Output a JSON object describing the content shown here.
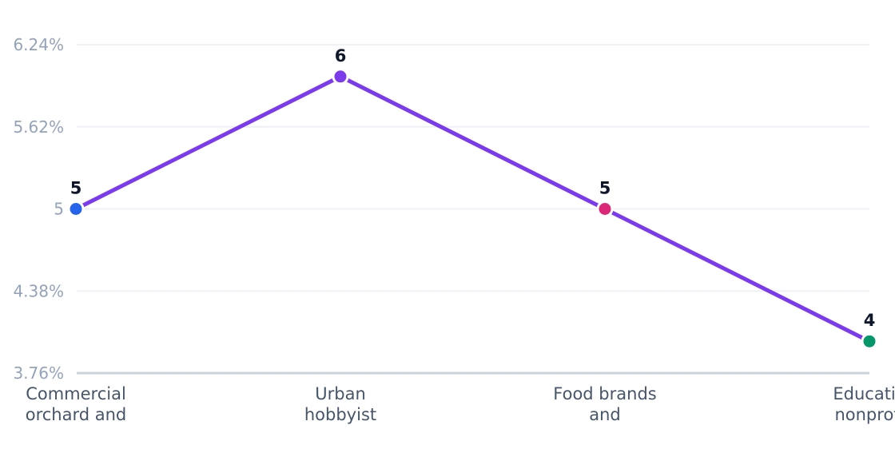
{
  "chart_data": {
    "type": "line",
    "title": "",
    "xlabel": "",
    "ylabel": "",
    "categories": [
      [
        "Commercial",
        "orchard and"
      ],
      [
        "Urban",
        "hobbyist"
      ],
      [
        "Food brands",
        "and"
      ],
      [
        "Educatio",
        "nonprofi"
      ]
    ],
    "y_ticks": [
      "6.24%",
      "5.62%",
      "5",
      "4.38%",
      "3.76%"
    ],
    "ylim": [
      3.76,
      6.24
    ],
    "series": [
      {
        "values": [
          5,
          6,
          5,
          4
        ],
        "data_labels": [
          "5",
          "6",
          "5",
          "4"
        ],
        "line_color": "#7c3aed",
        "point_colors": [
          "#2563eb",
          "#7c3aed",
          "#db2777",
          "#059669"
        ]
      }
    ],
    "grid": true,
    "legend": "none"
  }
}
